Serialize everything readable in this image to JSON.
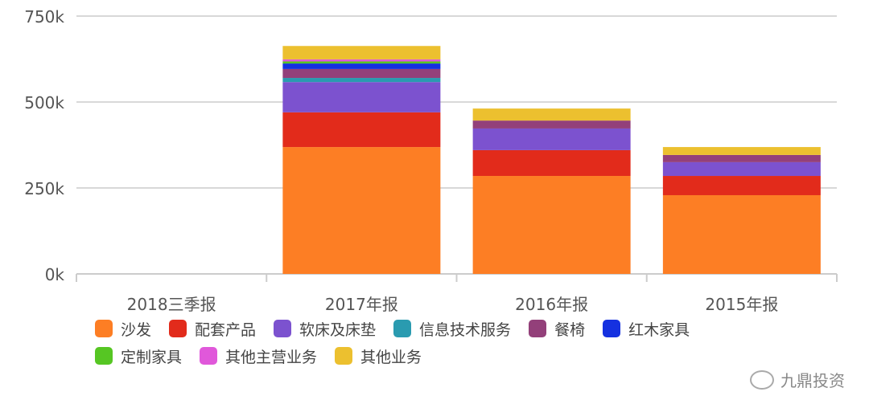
{
  "chart_data": {
    "type": "bar",
    "stacked": true,
    "categories": [
      "2018三季报",
      "2017年报",
      "2016年报",
      "2015年报"
    ],
    "ylim": [
      0,
      750
    ],
    "yticks": [
      0,
      250,
      500,
      750
    ],
    "ytick_labels": [
      "0k",
      "250k",
      "500k",
      "750k"
    ],
    "grid": true,
    "legend_position": "bottom",
    "series": [
      {
        "name": "沙发",
        "color": "#fd7e24",
        "values": [
          0,
          369,
          285,
          229
        ]
      },
      {
        "name": "配套产品",
        "color": "#e22b1b",
        "values": [
          0,
          101,
          75,
          56
        ]
      },
      {
        "name": "软床及床垫",
        "color": "#7c52cf",
        "values": [
          0,
          88,
          63,
          40
        ]
      },
      {
        "name": "信息技术服务",
        "color": "#2a9bb0",
        "values": [
          0,
          12,
          0,
          0
        ]
      },
      {
        "name": "餐椅",
        "color": "#93407a",
        "values": [
          0,
          26,
          23,
          21
        ]
      },
      {
        "name": "红木家具",
        "color": "#1531e0",
        "values": [
          0,
          16,
          0,
          0
        ]
      },
      {
        "name": "定制家具",
        "color": "#56c623",
        "values": [
          0,
          6,
          0,
          0
        ]
      },
      {
        "name": "其他主营业务",
        "color": "#e058da",
        "values": [
          0,
          6,
          0,
          0
        ]
      },
      {
        "name": "其他业务",
        "color": "#ecc02f",
        "values": [
          0,
          39,
          35,
          23
        ]
      }
    ]
  },
  "watermark": "九鼎投资"
}
